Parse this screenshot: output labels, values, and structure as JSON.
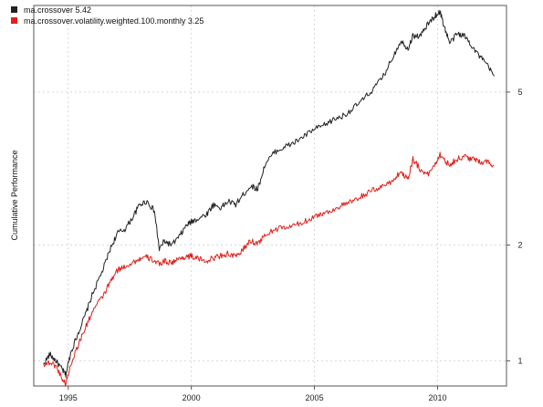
{
  "chart_data": {
    "type": "line",
    "title": "",
    "xlabel": "",
    "ylabel": "Cumulative Performance",
    "y_scale": "log",
    "xlim": [
      1993.6,
      2012.8
    ],
    "ylim": [
      0.86,
      8.4
    ],
    "x_ticks": [
      "1995",
      "2000",
      "2005",
      "2010"
    ],
    "x_tick_values": [
      1995,
      2000,
      2005,
      2010
    ],
    "y_ticks": [
      "1",
      "2",
      "5"
    ],
    "y_tick_values": [
      1,
      2,
      5
    ],
    "grid": true,
    "legend_position": "top-left",
    "series": [
      {
        "name": "ma.crossover 5.42",
        "color": "#222222",
        "x": [
          1994.0,
          1994.25,
          1994.5,
          1994.75,
          1994.9,
          1995.1,
          1995.4,
          1995.7,
          1996.0,
          1996.4,
          1996.7,
          1997.0,
          1997.3,
          1997.6,
          1997.9,
          1998.2,
          1998.5,
          1998.7,
          1998.9,
          1999.2,
          1999.5,
          1999.8,
          2000.0,
          2000.3,
          2000.6,
          2000.9,
          2001.2,
          2001.5,
          2001.8,
          2002.1,
          2002.4,
          2002.7,
          2003.0,
          2003.4,
          2003.8,
          2004.2,
          2004.6,
          2005.0,
          2005.4,
          2005.8,
          2006.2,
          2006.6,
          2007.0,
          2007.4,
          2007.8,
          2008.2,
          2008.5,
          2008.8,
          2009.0,
          2009.3,
          2009.6,
          2009.9,
          2010.1,
          2010.3,
          2010.5,
          2010.8,
          2011.1,
          2011.4,
          2011.7,
          2012.0,
          2012.3
        ],
        "values": [
          0.98,
          1.04,
          1.0,
          0.95,
          0.92,
          1.05,
          1.18,
          1.32,
          1.5,
          1.72,
          1.95,
          2.15,
          2.2,
          2.35,
          2.55,
          2.6,
          2.45,
          1.95,
          2.05,
          2.0,
          2.1,
          2.25,
          2.3,
          2.35,
          2.4,
          2.55,
          2.5,
          2.6,
          2.55,
          2.7,
          2.85,
          2.8,
          3.25,
          3.5,
          3.6,
          3.7,
          3.85,
          4.0,
          4.1,
          4.25,
          4.35,
          4.55,
          4.8,
          5.1,
          5.5,
          6.2,
          6.8,
          6.5,
          7.0,
          7.0,
          7.5,
          7.9,
          8.1,
          7.3,
          6.7,
          7.1,
          7.0,
          6.6,
          6.2,
          5.9,
          5.5
        ]
      },
      {
        "name": "ma.crossover.volatility.weighted.100.monthly 3.25",
        "color": "#e0201b",
        "x": [
          1994.0,
          1994.25,
          1994.5,
          1994.75,
          1994.9,
          1995.1,
          1995.4,
          1995.7,
          1996.0,
          1996.4,
          1996.7,
          1997.0,
          1997.3,
          1997.6,
          1997.9,
          1998.2,
          1998.5,
          1998.7,
          1998.9,
          1999.2,
          1999.5,
          1999.8,
          2000.0,
          2000.3,
          2000.6,
          2000.9,
          2001.2,
          2001.5,
          2001.8,
          2002.1,
          2002.4,
          2002.7,
          2003.0,
          2003.4,
          2003.8,
          2004.2,
          2004.6,
          2005.0,
          2005.4,
          2005.8,
          2006.2,
          2006.6,
          2007.0,
          2007.4,
          2007.8,
          2008.2,
          2008.5,
          2008.8,
          2009.0,
          2009.3,
          2009.6,
          2009.9,
          2010.1,
          2010.3,
          2010.5,
          2010.8,
          2011.1,
          2011.4,
          2011.7,
          2012.0,
          2012.3
        ],
        "values": [
          0.98,
          0.99,
          0.97,
          0.9,
          0.87,
          0.98,
          1.1,
          1.22,
          1.35,
          1.47,
          1.6,
          1.72,
          1.76,
          1.8,
          1.84,
          1.86,
          1.82,
          1.78,
          1.82,
          1.8,
          1.84,
          1.87,
          1.87,
          1.84,
          1.82,
          1.85,
          1.88,
          1.9,
          1.86,
          1.95,
          2.05,
          2.02,
          2.12,
          2.2,
          2.22,
          2.25,
          2.3,
          2.38,
          2.42,
          2.48,
          2.55,
          2.6,
          2.7,
          2.78,
          2.85,
          2.95,
          3.1,
          2.98,
          3.35,
          3.15,
          3.05,
          3.25,
          3.45,
          3.3,
          3.25,
          3.35,
          3.4,
          3.35,
          3.3,
          3.3,
          3.22
        ]
      }
    ]
  }
}
